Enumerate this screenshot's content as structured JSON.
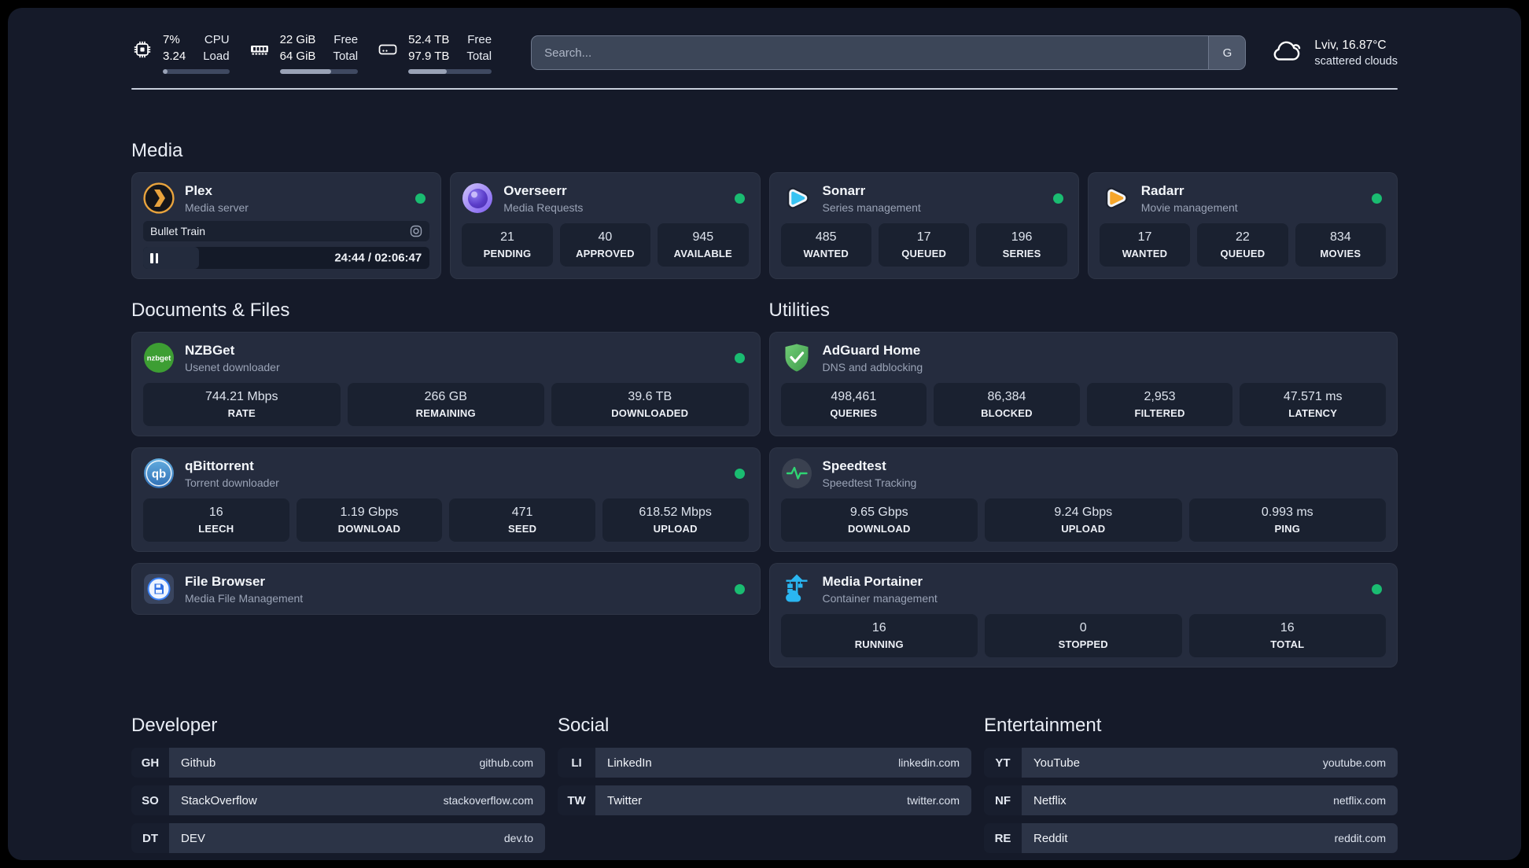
{
  "colors": {
    "status_online": "#1abc71",
    "accent_green": "#2fd573"
  },
  "topbar": {
    "system_stats": [
      {
        "icon": "cpu-icon",
        "values": [
          "7%",
          "3.24"
        ],
        "labels": [
          "CPU",
          "Load"
        ],
        "progress_pct": 7
      },
      {
        "icon": "memory-icon",
        "values": [
          "22 GiB",
          "64 GiB"
        ],
        "labels": [
          "Free",
          "Total"
        ],
        "progress_pct": 66
      },
      {
        "icon": "disk-icon",
        "values": [
          "52.4 TB",
          "97.9 TB"
        ],
        "labels": [
          "Free",
          "Total"
        ],
        "progress_pct": 46
      }
    ],
    "search": {
      "placeholder": "Search...",
      "engine_button": "G"
    },
    "weather": {
      "location": "Lviv, 16.87°C",
      "condition": "scattered clouds"
    }
  },
  "media_section": {
    "title": "Media",
    "apps": [
      {
        "name": "Plex",
        "subtitle": "Media server",
        "icon": "plex-icon",
        "status": "online",
        "player": {
          "title": "Bullet Train",
          "time": "24:44 / 02:06:47",
          "progress_pct": 19.5
        }
      },
      {
        "name": "Overseerr",
        "subtitle": "Media Requests",
        "icon": "overseerr-icon",
        "status": "online",
        "stats": [
          {
            "value": "21",
            "label": "PENDING"
          },
          {
            "value": "40",
            "label": "APPROVED"
          },
          {
            "value": "945",
            "label": "AVAILABLE"
          }
        ]
      },
      {
        "name": "Sonarr",
        "subtitle": "Series management",
        "icon": "sonarr-icon",
        "status": "online",
        "stats": [
          {
            "value": "485",
            "label": "WANTED"
          },
          {
            "value": "17",
            "label": "QUEUED"
          },
          {
            "value": "196",
            "label": "SERIES"
          }
        ]
      },
      {
        "name": "Radarr",
        "subtitle": "Movie management",
        "icon": "radarr-icon",
        "status": "online",
        "stats": [
          {
            "value": "17",
            "label": "WANTED"
          },
          {
            "value": "22",
            "label": "QUEUED"
          },
          {
            "value": "834",
            "label": "MOVIES"
          }
        ]
      }
    ]
  },
  "documents_section": {
    "title": "Documents & Files",
    "apps": [
      {
        "name": "NZBGet",
        "subtitle": "Usenet downloader",
        "icon": "nzbget-icon",
        "status": "online",
        "stats": [
          {
            "value": "744.21 Mbps",
            "label": "RATE"
          },
          {
            "value": "266 GB",
            "label": "REMAINING"
          },
          {
            "value": "39.6 TB",
            "label": "DOWNLOADED"
          }
        ]
      },
      {
        "name": "qBittorrent",
        "subtitle": "Torrent downloader",
        "icon": "qbittorrent-icon",
        "status": "online",
        "stats": [
          {
            "value": "16",
            "label": "LEECH"
          },
          {
            "value": "1.19 Gbps",
            "label": "DOWNLOAD"
          },
          {
            "value": "471",
            "label": "SEED"
          },
          {
            "value": "618.52 Mbps",
            "label": "UPLOAD"
          }
        ]
      },
      {
        "name": "File Browser",
        "subtitle": "Media File Management",
        "icon": "filebrowser-icon",
        "status": "online",
        "stats": []
      }
    ]
  },
  "utilities_section": {
    "title": "Utilities",
    "apps": [
      {
        "name": "AdGuard Home",
        "subtitle": "DNS and adblocking",
        "icon": "adguard-icon",
        "status": "none",
        "stats": [
          {
            "value": "498,461",
            "label": "QUERIES"
          },
          {
            "value": "86,384",
            "label": "BLOCKED"
          },
          {
            "value": "2,953",
            "label": "FILTERED"
          },
          {
            "value": "47.571 ms",
            "label": "LATENCY"
          }
        ]
      },
      {
        "name": "Speedtest",
        "subtitle": "Speedtest Tracking",
        "icon": "speedtest-icon",
        "status": "none",
        "stats": [
          {
            "value": "9.65 Gbps",
            "label": "DOWNLOAD"
          },
          {
            "value": "9.24 Gbps",
            "label": "UPLOAD"
          },
          {
            "value": "0.993 ms",
            "label": "PING"
          }
        ]
      },
      {
        "name": "Media Portainer",
        "subtitle": "Container management",
        "icon": "portainer-icon",
        "status": "online",
        "stats": [
          {
            "value": "16",
            "label": "RUNNING"
          },
          {
            "value": "0",
            "label": "STOPPED"
          },
          {
            "value": "16",
            "label": "TOTAL"
          }
        ]
      }
    ]
  },
  "link_sections": [
    {
      "title": "Developer",
      "links": [
        {
          "badge": "GH",
          "name": "Github",
          "url": "github.com"
        },
        {
          "badge": "SO",
          "name": "StackOverflow",
          "url": "stackoverflow.com"
        },
        {
          "badge": "DT",
          "name": "DEV",
          "url": "dev.to"
        }
      ]
    },
    {
      "title": "Social",
      "links": [
        {
          "badge": "LI",
          "name": "LinkedIn",
          "url": "linkedin.com"
        },
        {
          "badge": "TW",
          "name": "Twitter",
          "url": "twitter.com"
        }
      ]
    },
    {
      "title": "Entertainment",
      "links": [
        {
          "badge": "YT",
          "name": "YouTube",
          "url": "youtube.com"
        },
        {
          "badge": "NF",
          "name": "Netflix",
          "url": "netflix.com"
        },
        {
          "badge": "RE",
          "name": "Reddit",
          "url": "reddit.com"
        }
      ]
    }
  ]
}
